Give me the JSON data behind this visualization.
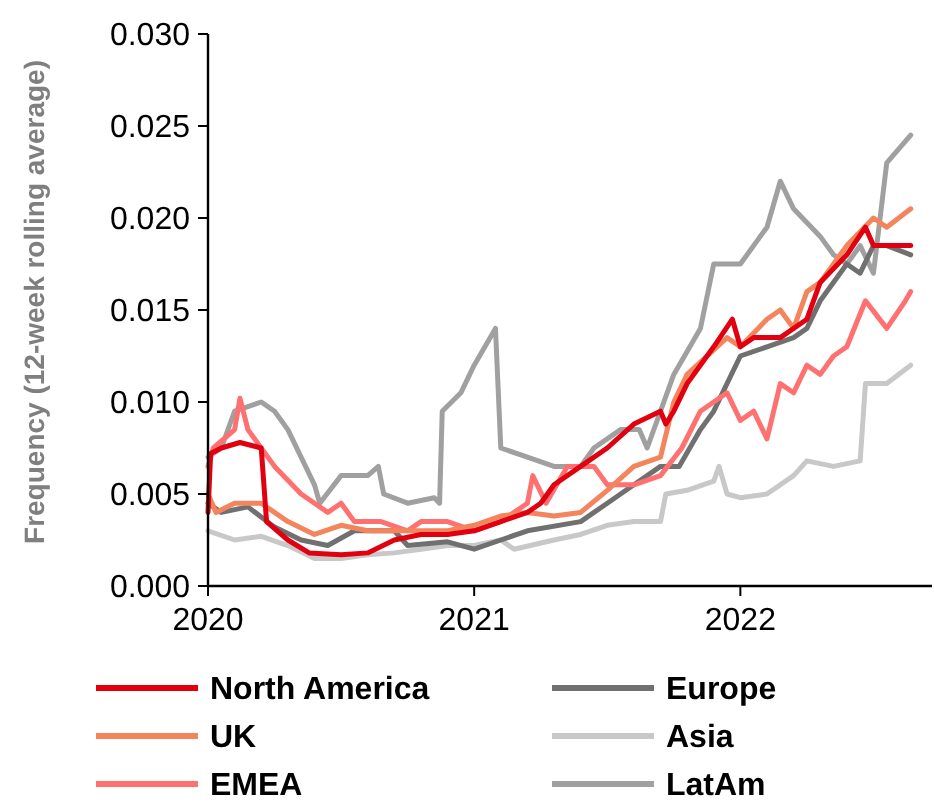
{
  "chart_data": {
    "type": "line",
    "ylabel": "Frequency (12-week rolling average)",
    "xlim": [
      2020,
      2022.72
    ],
    "xticks": [
      2020,
      2021,
      2022
    ],
    "ylim": [
      0,
      0.03
    ],
    "yticks": [
      {
        "value": 0,
        "label": "0.000"
      },
      {
        "value": 0.005,
        "label": "0.005"
      },
      {
        "value": 0.01,
        "label": "0.010"
      },
      {
        "value": 0.015,
        "label": "0.015"
      },
      {
        "value": 0.02,
        "label": "0.020"
      },
      {
        "value": 0.025,
        "label": "0.025"
      },
      {
        "value": 0.03,
        "label": "0.030"
      }
    ],
    "grid": false,
    "legend": "bottom",
    "line_style": "solid",
    "series": [
      {
        "name": "LatAm",
        "color": "#a0a0a0",
        "x": [
          2020,
          2020.05,
          2020.1,
          2020.2,
          2020.25,
          2020.3,
          2020.4,
          2020.42,
          2020.5,
          2020.6,
          2020.64,
          2020.66,
          2020.75,
          2020.85,
          2020.87,
          2020.88,
          2020.95,
          2021,
          2021.08,
          2021.1,
          2021.2,
          2021.3,
          2021.4,
          2021.45,
          2021.55,
          2021.62,
          2021.65,
          2021.75,
          2021.85,
          2021.9,
          2022,
          2022.05,
          2022.1,
          2022.15,
          2022.2,
          2022.3,
          2022.35,
          2022.4,
          2022.45,
          2022.5,
          2022.55,
          2022.64
        ],
        "values": [
          0.007,
          0.0075,
          0.0095,
          0.01,
          0.0095,
          0.0085,
          0.0055,
          0.0045,
          0.006,
          0.006,
          0.0065,
          0.005,
          0.0045,
          0.0048,
          0.0045,
          0.0095,
          0.0105,
          0.012,
          0.014,
          0.0075,
          0.007,
          0.0065,
          0.0065,
          0.0075,
          0.0085,
          0.0085,
          0.0075,
          0.0115,
          0.014,
          0.0175,
          0.0175,
          0.0185,
          0.0195,
          0.022,
          0.0205,
          0.019,
          0.018,
          0.0175,
          0.0185,
          0.017,
          0.023,
          0.0245
        ]
      },
      {
        "name": "Asia",
        "color": "#c8c8c8",
        "x": [
          2020,
          2020.1,
          2020.2,
          2020.3,
          2020.4,
          2020.5,
          2020.6,
          2020.7,
          2020.8,
          2020.9,
          2021,
          2021.1,
          2021.15,
          2021.3,
          2021.4,
          2021.5,
          2021.6,
          2021.7,
          2021.72,
          2021.8,
          2021.9,
          2021.92,
          2021.95,
          2022,
          2022.1,
          2022.2,
          2022.25,
          2022.35,
          2022.45,
          2022.47,
          2022.55,
          2022.64
        ],
        "values": [
          0.003,
          0.0025,
          0.0027,
          0.0022,
          0.0015,
          0.0015,
          0.0017,
          0.0018,
          0.002,
          0.0022,
          0.0022,
          0.0025,
          0.002,
          0.0025,
          0.0028,
          0.0033,
          0.0035,
          0.0035,
          0.005,
          0.0052,
          0.0057,
          0.0065,
          0.005,
          0.0048,
          0.005,
          0.006,
          0.0068,
          0.0065,
          0.0068,
          0.011,
          0.011,
          0.012
        ]
      },
      {
        "name": "Europe",
        "color": "#707070",
        "x": [
          2020,
          2020.05,
          2020.15,
          2020.25,
          2020.35,
          2020.45,
          2020.55,
          2020.7,
          2020.75,
          2020.9,
          2021,
          2021.1,
          2021.2,
          2021.4,
          2021.5,
          2021.6,
          2021.7,
          2021.77,
          2021.85,
          2021.9,
          2022,
          2022.1,
          2022.2,
          2022.25,
          2022.3,
          2022.4,
          2022.45,
          2022.5,
          2022.55,
          2022.64
        ],
        "values": [
          0.0045,
          0.004,
          0.0043,
          0.0032,
          0.0025,
          0.0022,
          0.003,
          0.003,
          0.0022,
          0.0024,
          0.002,
          0.0025,
          0.003,
          0.0035,
          0.0045,
          0.0055,
          0.0065,
          0.0065,
          0.0085,
          0.0095,
          0.0125,
          0.013,
          0.0135,
          0.014,
          0.0155,
          0.0175,
          0.017,
          0.0185,
          0.0185,
          0.018
        ]
      },
      {
        "name": "EMEA",
        "color": "#ff7070",
        "x": [
          2020,
          2020.02,
          2020.1,
          2020.12,
          2020.15,
          2020.25,
          2020.35,
          2020.45,
          2020.5,
          2020.55,
          2020.65,
          2020.75,
          2020.8,
          2020.9,
          2021,
          2021.1,
          2021.15,
          2021.2,
          2021.22,
          2021.27,
          2021.35,
          2021.45,
          2021.5,
          2021.6,
          2021.7,
          2021.78,
          2021.85,
          2021.95,
          2022,
          2022.05,
          2022.1,
          2022.15,
          2022.2,
          2022.25,
          2022.3,
          2022.35,
          2022.4,
          2022.47,
          2022.55,
          2022.62,
          2022.64
        ],
        "values": [
          0.0065,
          0.0075,
          0.0085,
          0.0102,
          0.0085,
          0.0065,
          0.005,
          0.004,
          0.0045,
          0.0035,
          0.0035,
          0.003,
          0.0035,
          0.0035,
          0.003,
          0.0035,
          0.004,
          0.0045,
          0.006,
          0.0045,
          0.0065,
          0.0065,
          0.0055,
          0.0055,
          0.006,
          0.0075,
          0.0095,
          0.0105,
          0.009,
          0.0095,
          0.008,
          0.011,
          0.0105,
          0.012,
          0.0115,
          0.0125,
          0.013,
          0.0155,
          0.014,
          0.0155,
          0.016
        ]
      },
      {
        "name": "UK",
        "color": "#f4845c",
        "x": [
          2020,
          2020.03,
          2020.1,
          2020.2,
          2020.3,
          2020.4,
          2020.5,
          2020.6,
          2020.7,
          2020.8,
          2020.9,
          2021,
          2021.1,
          2021.2,
          2021.3,
          2021.4,
          2021.5,
          2021.6,
          2021.7,
          2021.75,
          2021.8,
          2021.95,
          2022,
          2022.1,
          2022.15,
          2022.2,
          2022.25,
          2022.3,
          2022.4,
          2022.5,
          2022.55,
          2022.64
        ],
        "values": [
          0.005,
          0.004,
          0.0045,
          0.0045,
          0.0035,
          0.0028,
          0.0033,
          0.003,
          0.003,
          0.003,
          0.003,
          0.0033,
          0.0038,
          0.004,
          0.0038,
          0.004,
          0.0052,
          0.0065,
          0.007,
          0.01,
          0.0115,
          0.0135,
          0.013,
          0.0145,
          0.015,
          0.014,
          0.016,
          0.0165,
          0.0185,
          0.02,
          0.0195,
          0.0205
        ]
      },
      {
        "name": "North America",
        "color": "#e00010",
        "x": [
          2020,
          2020.01,
          2020.05,
          2020.12,
          2020.2,
          2020.22,
          2020.3,
          2020.38,
          2020.5,
          2020.6,
          2020.7,
          2020.8,
          2020.9,
          2021,
          2021.1,
          2021.2,
          2021.25,
          2021.3,
          2021.4,
          2021.5,
          2021.6,
          2021.7,
          2021.72,
          2021.75,
          2021.8,
          2021.9,
          2021.97,
          2022,
          2022.05,
          2022.15,
          2022.25,
          2022.3,
          2022.4,
          2022.47,
          2022.5,
          2022.64
        ],
        "values": [
          0.004,
          0.0072,
          0.0075,
          0.0078,
          0.0075,
          0.0035,
          0.0025,
          0.0018,
          0.0017,
          0.0018,
          0.0025,
          0.0028,
          0.0028,
          0.003,
          0.0035,
          0.004,
          0.0045,
          0.0055,
          0.0065,
          0.0075,
          0.0088,
          0.0095,
          0.0088,
          0.0095,
          0.011,
          0.013,
          0.0145,
          0.013,
          0.0135,
          0.0135,
          0.0145,
          0.0165,
          0.018,
          0.0195,
          0.0185,
          0.0185
        ]
      }
    ]
  }
}
